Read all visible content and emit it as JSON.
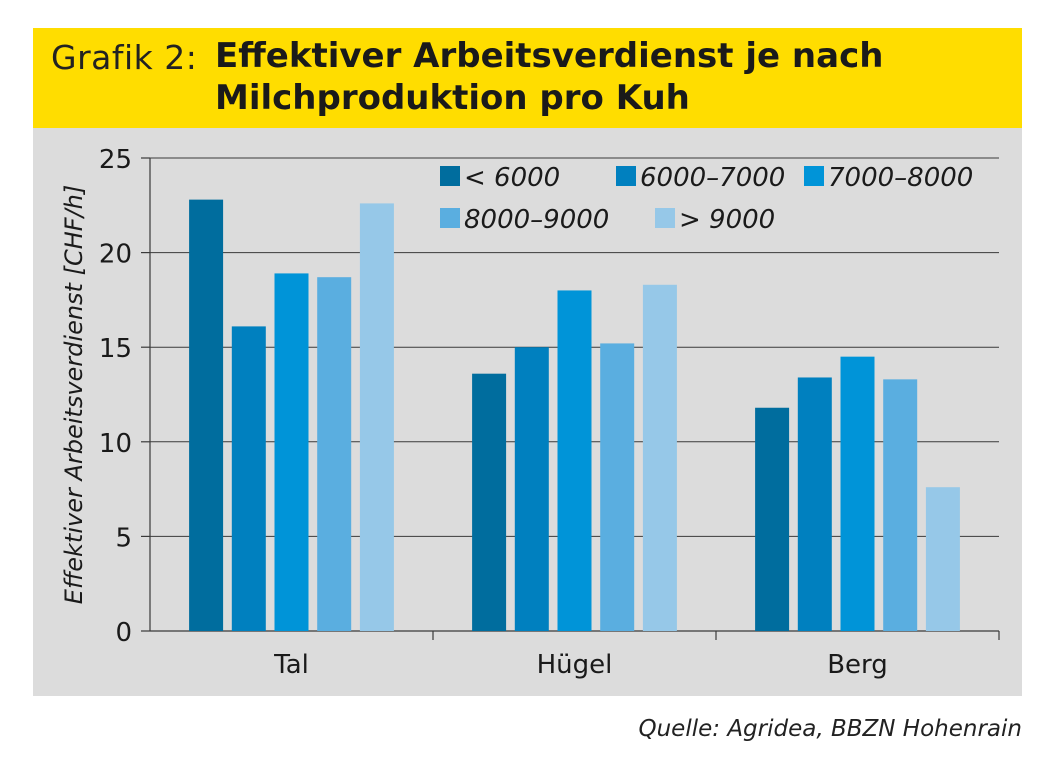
{
  "header": {
    "label": "Grafik 2:",
    "title_line1": "Effektiver Arbeitsverdienst je nach",
    "title_line2": "Milchproduktion pro Kuh",
    "background": "#ffdd00"
  },
  "source": "Quelle: Agridea, BBZN Hohenrain",
  "chart_data": {
    "type": "bar",
    "title": "Effektiver Arbeitsverdienst je nach Milchproduktion pro Kuh",
    "ylabel": "Effektiver Arbeitsverdienst [CHF/h]",
    "xlabel": "",
    "ylim": [
      0,
      25
    ],
    "yticks": [
      0,
      5,
      10,
      15,
      20,
      25
    ],
    "grid": true,
    "legend_position": "top-right",
    "categories": [
      "Tal",
      "Hügel",
      "Berg"
    ],
    "series": [
      {
        "name": "< 6000",
        "color": "#006d9e",
        "values": [
          22.8,
          13.6,
          11.8
        ]
      },
      {
        "name": "6000–7000",
        "color": "#0080bf",
        "values": [
          16.1,
          15.0,
          13.4
        ]
      },
      {
        "name": "7000–8000",
        "color": "#0094d8",
        "values": [
          18.9,
          18.0,
          14.5
        ]
      },
      {
        "name": "8000–9000",
        "color": "#5aaee0",
        "values": [
          18.7,
          15.2,
          13.3
        ]
      },
      {
        "name": "> 9000",
        "color": "#96c8e8",
        "values": [
          22.6,
          18.3,
          7.6
        ]
      }
    ]
  }
}
